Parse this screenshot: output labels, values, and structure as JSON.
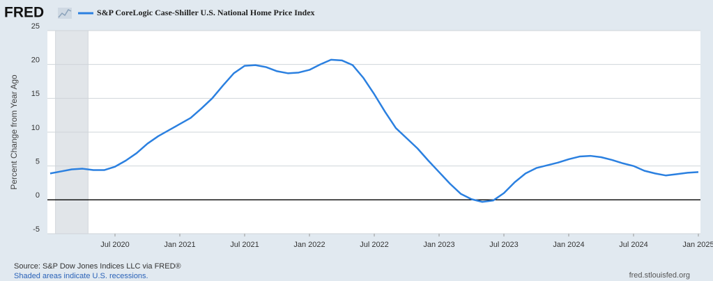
{
  "logo": "FRED",
  "chart_data": {
    "type": "line",
    "y_label": "Percent Change from Year Ago",
    "x": [
      "2020-01",
      "2020-02",
      "2020-03",
      "2020-04",
      "2020-05",
      "2020-06",
      "2020-07",
      "2020-08",
      "2020-09",
      "2020-10",
      "2020-11",
      "2020-12",
      "2021-01",
      "2021-02",
      "2021-03",
      "2021-04",
      "2021-05",
      "2021-06",
      "2021-07",
      "2021-08",
      "2021-09",
      "2021-10",
      "2021-11",
      "2021-12",
      "2022-01",
      "2022-02",
      "2022-03",
      "2022-04",
      "2022-05",
      "2022-06",
      "2022-07",
      "2022-08",
      "2022-09",
      "2022-10",
      "2022-11",
      "2022-12",
      "2023-01",
      "2023-02",
      "2023-03",
      "2023-04",
      "2023-05",
      "2023-06",
      "2023-07",
      "2023-08",
      "2023-09",
      "2023-10",
      "2023-11",
      "2023-12",
      "2024-01",
      "2024-02",
      "2024-03",
      "2024-04",
      "2024-05",
      "2024-06",
      "2024-07",
      "2024-08",
      "2024-09",
      "2024-10",
      "2024-11",
      "2024-12",
      "2025-01"
    ],
    "series": [
      {
        "name": "S&P CoreLogic Case-Shiller U.S. National Home Price Index",
        "color": "#2b80e0",
        "values": [
          3.9,
          4.2,
          4.5,
          4.6,
          4.4,
          4.4,
          4.9,
          5.8,
          6.9,
          8.3,
          9.4,
          10.3,
          11.2,
          12.1,
          13.5,
          15.0,
          16.9,
          18.7,
          19.8,
          19.9,
          19.6,
          19.0,
          18.7,
          18.8,
          19.2,
          20.0,
          20.7,
          20.6,
          19.9,
          18.0,
          15.6,
          13.0,
          10.6,
          9.1,
          7.6,
          5.8,
          4.1,
          2.4,
          0.9,
          0.1,
          -0.3,
          -0.1,
          1.0,
          2.6,
          3.9,
          4.7,
          5.1,
          5.5,
          6.0,
          6.4,
          6.5,
          6.3,
          5.9,
          5.4,
          5.0,
          4.3,
          3.9,
          3.6,
          3.8,
          4.0,
          4.1
        ]
      }
    ],
    "recessions": [
      [
        "2020-02",
        "2020-04"
      ]
    ],
    "xlim": [
      "2020-01",
      "2025-01"
    ],
    "xticks": [
      {
        "value": "2020-07",
        "label": "Jul 2020"
      },
      {
        "value": "2021-01",
        "label": "Jan 2021"
      },
      {
        "value": "2021-07",
        "label": "Jul 2021"
      },
      {
        "value": "2022-01",
        "label": "Jan 2022"
      },
      {
        "value": "2022-07",
        "label": "Jul 2022"
      },
      {
        "value": "2023-01",
        "label": "Jan 2023"
      },
      {
        "value": "2023-07",
        "label": "Jul 2023"
      },
      {
        "value": "2024-01",
        "label": "Jan 2024"
      },
      {
        "value": "2024-07",
        "label": "Jul 2024"
      },
      {
        "value": "2025-01",
        "label": "Jan 2025"
      }
    ],
    "ylim": [
      -5,
      25
    ],
    "yticks": [
      -5,
      0,
      5,
      10,
      15,
      20,
      25
    ],
    "grid": true,
    "source": "Source: S&P Dow Jones Indices LLC via FRED®",
    "note": "Shaded areas indicate U.S. recessions.",
    "site": "fred.stlouisfed.org"
  }
}
